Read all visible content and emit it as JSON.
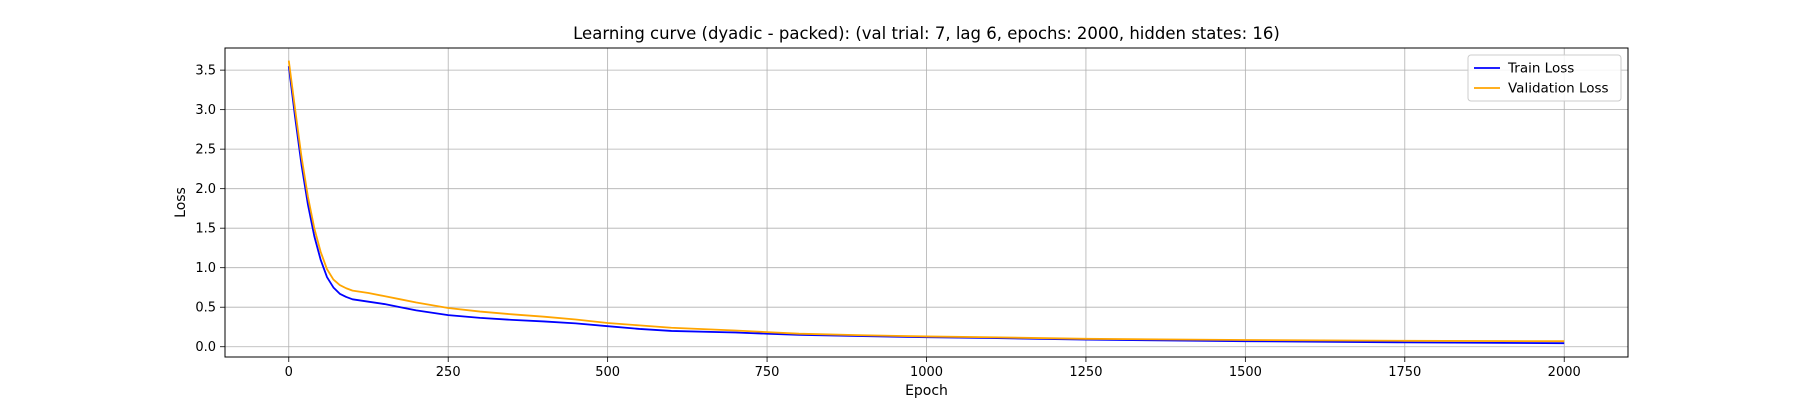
{
  "chart_data": {
    "type": "line",
    "title": "Learning curve (dyadic - packed): (val trial: 7, lag 6, epochs: 2000, hidden states: 16)",
    "xlabel": "Epoch",
    "ylabel": "Loss",
    "xlim": [
      -100,
      2100
    ],
    "ylim": [
      -0.13,
      3.78
    ],
    "xticks": [
      0,
      250,
      500,
      750,
      1000,
      1250,
      1500,
      1750,
      2000
    ],
    "yticks": [
      0.0,
      0.5,
      1.0,
      1.5,
      2.0,
      2.5,
      3.0,
      3.5
    ],
    "grid": true,
    "legend_position": "top-right",
    "series": [
      {
        "name": "Train Loss",
        "color": "#0000ff",
        "x": [
          0,
          10,
          20,
          30,
          40,
          50,
          60,
          70,
          80,
          90,
          100,
          125,
          150,
          175,
          200,
          250,
          300,
          350,
          400,
          450,
          500,
          550,
          600,
          700,
          750,
          800,
          900,
          1000,
          1100,
          1250,
          1500,
          1750,
          2000
        ],
        "y": [
          3.55,
          2.9,
          2.3,
          1.8,
          1.4,
          1.1,
          0.88,
          0.75,
          0.67,
          0.63,
          0.6,
          0.57,
          0.54,
          0.5,
          0.46,
          0.4,
          0.365,
          0.34,
          0.32,
          0.295,
          0.26,
          0.225,
          0.2,
          0.18,
          0.165,
          0.15,
          0.135,
          0.12,
          0.11,
          0.09,
          0.07,
          0.055,
          0.045
        ]
      },
      {
        "name": "Validation Loss",
        "color": "#ffa500",
        "x": [
          0,
          10,
          20,
          30,
          40,
          50,
          60,
          70,
          80,
          90,
          100,
          125,
          150,
          175,
          200,
          250,
          300,
          350,
          400,
          450,
          500,
          550,
          600,
          700,
          750,
          800,
          900,
          1000,
          1100,
          1250,
          1500,
          1750,
          2000
        ],
        "y": [
          3.62,
          3.0,
          2.4,
          1.9,
          1.5,
          1.2,
          0.98,
          0.85,
          0.78,
          0.74,
          0.71,
          0.68,
          0.64,
          0.6,
          0.56,
          0.49,
          0.445,
          0.41,
          0.38,
          0.345,
          0.3,
          0.27,
          0.24,
          0.205,
          0.185,
          0.165,
          0.145,
          0.13,
          0.12,
          0.1,
          0.085,
          0.075,
          0.07
        ]
      }
    ]
  }
}
